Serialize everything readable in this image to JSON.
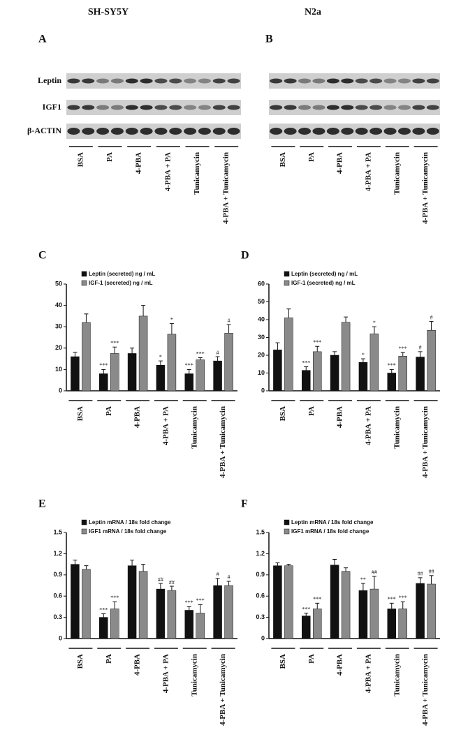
{
  "headers": [
    "SH-SY5Y",
    "N2a"
  ],
  "blots": [
    {
      "label": "A",
      "rows": [
        "Leptin",
        "IGF1",
        "β-ACTIN"
      ],
      "categories": [
        "BSA",
        "PA",
        "4-PBA",
        "4-PBA + PA",
        "Tunicamycin",
        "4-PBA + Tunicamycin"
      ]
    },
    {
      "label": "B",
      "categories": [
        "BSA",
        "PA",
        "4-PBA",
        "4-PBA + PA",
        "Tunicamycin",
        "4-PBA + Tunicamycin"
      ]
    }
  ],
  "chart_data": [
    {
      "type": "bar",
      "label": "C",
      "categories": [
        "BSA",
        "PA",
        "4-PBA",
        "4-PBA + PA",
        "Tunicamycin",
        "4-PBA + Tunicamycin"
      ],
      "ylim": [
        0,
        50
      ],
      "yticks": [
        0,
        10,
        20,
        30,
        40,
        50
      ],
      "series": [
        {
          "name": "Leptin (secreted) ng / mL",
          "color": "#111111",
          "values": [
            16,
            8,
            17.5,
            12,
            8,
            14
          ],
          "errors": [
            2,
            2,
            2.5,
            2,
            2,
            2
          ],
          "annotations": [
            null,
            "***",
            null,
            "*",
            "***",
            "#"
          ]
        },
        {
          "name": "IGF-1 (secreted) ng / mL",
          "color": "#8a8a8a",
          "values": [
            32,
            17.5,
            35,
            26.5,
            14.5,
            27
          ],
          "errors": [
            4,
            3,
            5,
            5,
            1,
            4
          ],
          "annotations": [
            null,
            "***",
            null,
            "*",
            "***",
            "#"
          ]
        }
      ]
    },
    {
      "type": "bar",
      "label": "D",
      "categories": [
        "BSA",
        "PA",
        "4-PBA",
        "4-PBA + PA",
        "Tunicamycin",
        "4-PBA + Tunicamycin"
      ],
      "ylim": [
        0,
        60
      ],
      "yticks": [
        0,
        10,
        20,
        30,
        40,
        50,
        60
      ],
      "series": [
        {
          "name": "Leptin (secreted) ng / mL",
          "color": "#111111",
          "values": [
            23,
            11.5,
            20,
            16,
            10,
            19
          ],
          "errors": [
            4,
            2,
            2,
            2,
            2,
            3
          ],
          "annotations": [
            null,
            "***",
            null,
            "*",
            "***",
            "#"
          ]
        },
        {
          "name": "IGF-1 (secreted) ng / mL",
          "color": "#8a8a8a",
          "values": [
            41,
            22,
            38.5,
            32,
            19.5,
            34
          ],
          "errors": [
            5,
            3,
            3,
            4,
            2,
            5
          ],
          "annotations": [
            null,
            "***",
            null,
            "*",
            "***",
            "#"
          ]
        }
      ]
    },
    {
      "type": "bar",
      "label": "E",
      "categories": [
        "BSA",
        "PA",
        "4-PBA",
        "4-PBA + PA",
        "Tunicamycin",
        "4-PBA + Tunicamycin"
      ],
      "ylim": [
        0,
        1.5
      ],
      "yticks": [
        0,
        0.3,
        0.6,
        0.9,
        1.2,
        1.5
      ],
      "series": [
        {
          "name": "Leptin mRNA / 18s  fold change",
          "color": "#111111",
          "values": [
            1.05,
            0.3,
            1.03,
            0.7,
            0.4,
            0.75
          ],
          "errors": [
            0.06,
            0.05,
            0.08,
            0.08,
            0.05,
            0.1
          ],
          "annotations": [
            null,
            "***",
            null,
            "##",
            "***",
            "#"
          ]
        },
        {
          "name": "IGF1 mRNA / 18s  fold change",
          "color": "#8a8a8a",
          "values": [
            0.98,
            0.42,
            0.95,
            0.68,
            0.36,
            0.75
          ],
          "errors": [
            0.05,
            0.1,
            0.1,
            0.06,
            0.12,
            0.06
          ],
          "annotations": [
            null,
            "***",
            null,
            "##",
            "***",
            "#"
          ]
        }
      ]
    },
    {
      "type": "bar",
      "label": "F",
      "categories": [
        "BSA",
        "PA",
        "4-PBA",
        "4-PBA + PA",
        "Tunicamycin",
        "4-PBA + Tunicamycin"
      ],
      "ylim": [
        0,
        1.5
      ],
      "yticks": [
        0,
        0.3,
        0.6,
        0.9,
        1.2,
        1.5
      ],
      "series": [
        {
          "name": "Leptin mRNA / 18s  fold change",
          "color": "#111111",
          "values": [
            1.03,
            0.32,
            1.04,
            0.68,
            0.42,
            0.78
          ],
          "errors": [
            0.04,
            0.04,
            0.08,
            0.1,
            0.08,
            0.08
          ],
          "annotations": [
            null,
            "***",
            null,
            "**",
            "***",
            "##"
          ]
        },
        {
          "name": "IGF1 mRNA / 18s  fold change",
          "color": "#8a8a8a",
          "values": [
            1.03,
            0.42,
            0.95,
            0.7,
            0.42,
            0.77
          ],
          "errors": [
            0.02,
            0.08,
            0.05,
            0.18,
            0.1,
            0.12
          ],
          "annotations": [
            null,
            "***",
            null,
            "##",
            "***",
            "##"
          ]
        }
      ]
    }
  ]
}
